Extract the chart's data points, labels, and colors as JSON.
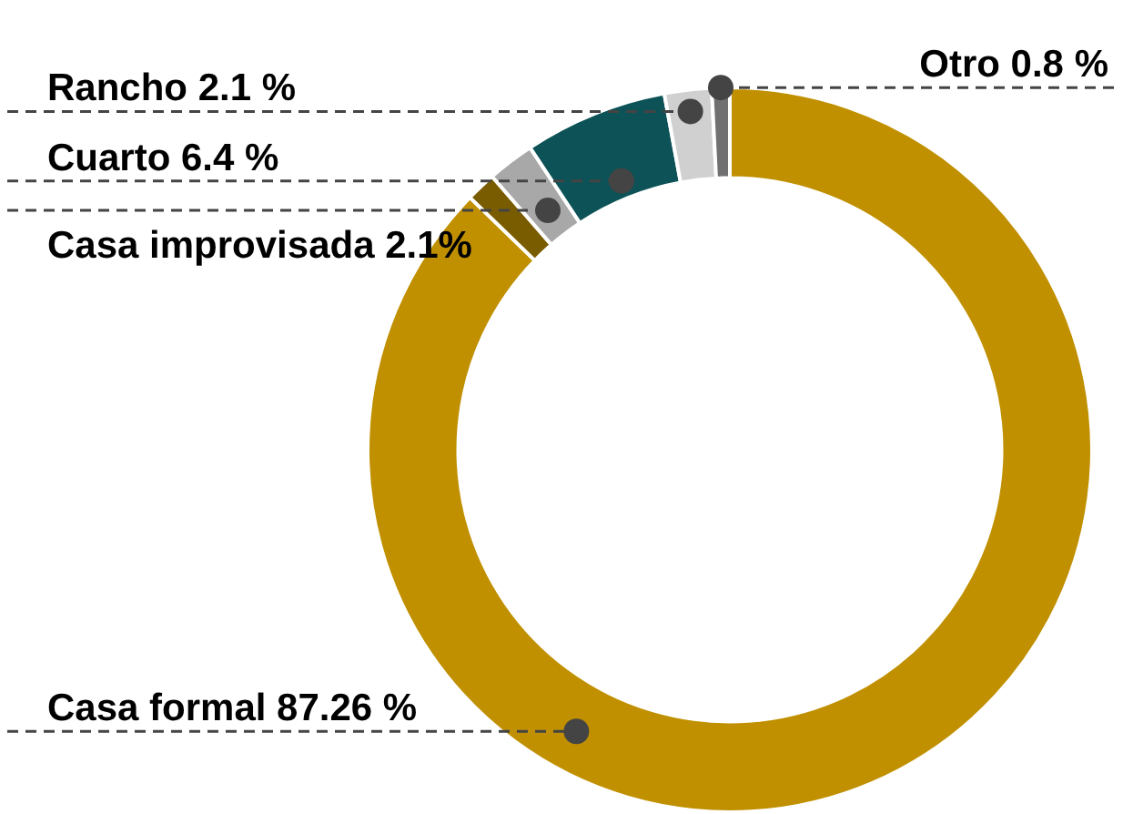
{
  "chart_data": {
    "type": "donut",
    "categories": [
      "Casa formal",
      null,
      "Casa improvisada",
      "Cuarto",
      "Rancho",
      "Otro"
    ],
    "values": [
      87.26,
      1.34,
      2.1,
      6.4,
      2.1,
      0.8
    ],
    "colors": [
      "#c09000",
      "#7a5c00",
      "#a8a8a8",
      "#0d5257",
      "#d0d0d0",
      "#707070"
    ],
    "value_labels": [
      "87.26 %",
      null,
      "2.1%",
      "6.4 %",
      "2.1 %",
      "0.8 %"
    ],
    "legend": false
  }
}
